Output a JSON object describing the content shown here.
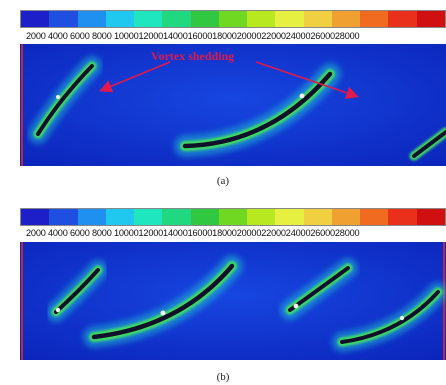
{
  "panels": [
    {
      "id": "a",
      "caption": "(a)",
      "annotation": "Vortex shedding",
      "colorbar_ticks": [
        "2000",
        "4000",
        "6000",
        "8000",
        "10000",
        "12000",
        "14000",
        "16000",
        "18000",
        "20000",
        "22000",
        "24000",
        "26000",
        "28000"
      ],
      "colorbar_labels": "2000  4000  6000  8000  10000120001400016000180002000022000240002600028000"
    },
    {
      "id": "b",
      "caption": "(b)",
      "colorbar_labels": "2000  4000  6000  8000  10000120001400016000180002000022000240002600028000"
    }
  ],
  "colormap": [
    "#1d20c8",
    "#1f4fe0",
    "#1f8ff0",
    "#20c8f0",
    "#20e6c0",
    "#20d880",
    "#30c840",
    "#70d820",
    "#b8e820",
    "#e6f040",
    "#f0d040",
    "#f0a030",
    "#f06a20",
    "#e8301a",
    "#d01010"
  ],
  "colors": {
    "field_bg": "#0c2cd0",
    "annotation": "#e01a4c",
    "blade": "#10102a"
  }
}
